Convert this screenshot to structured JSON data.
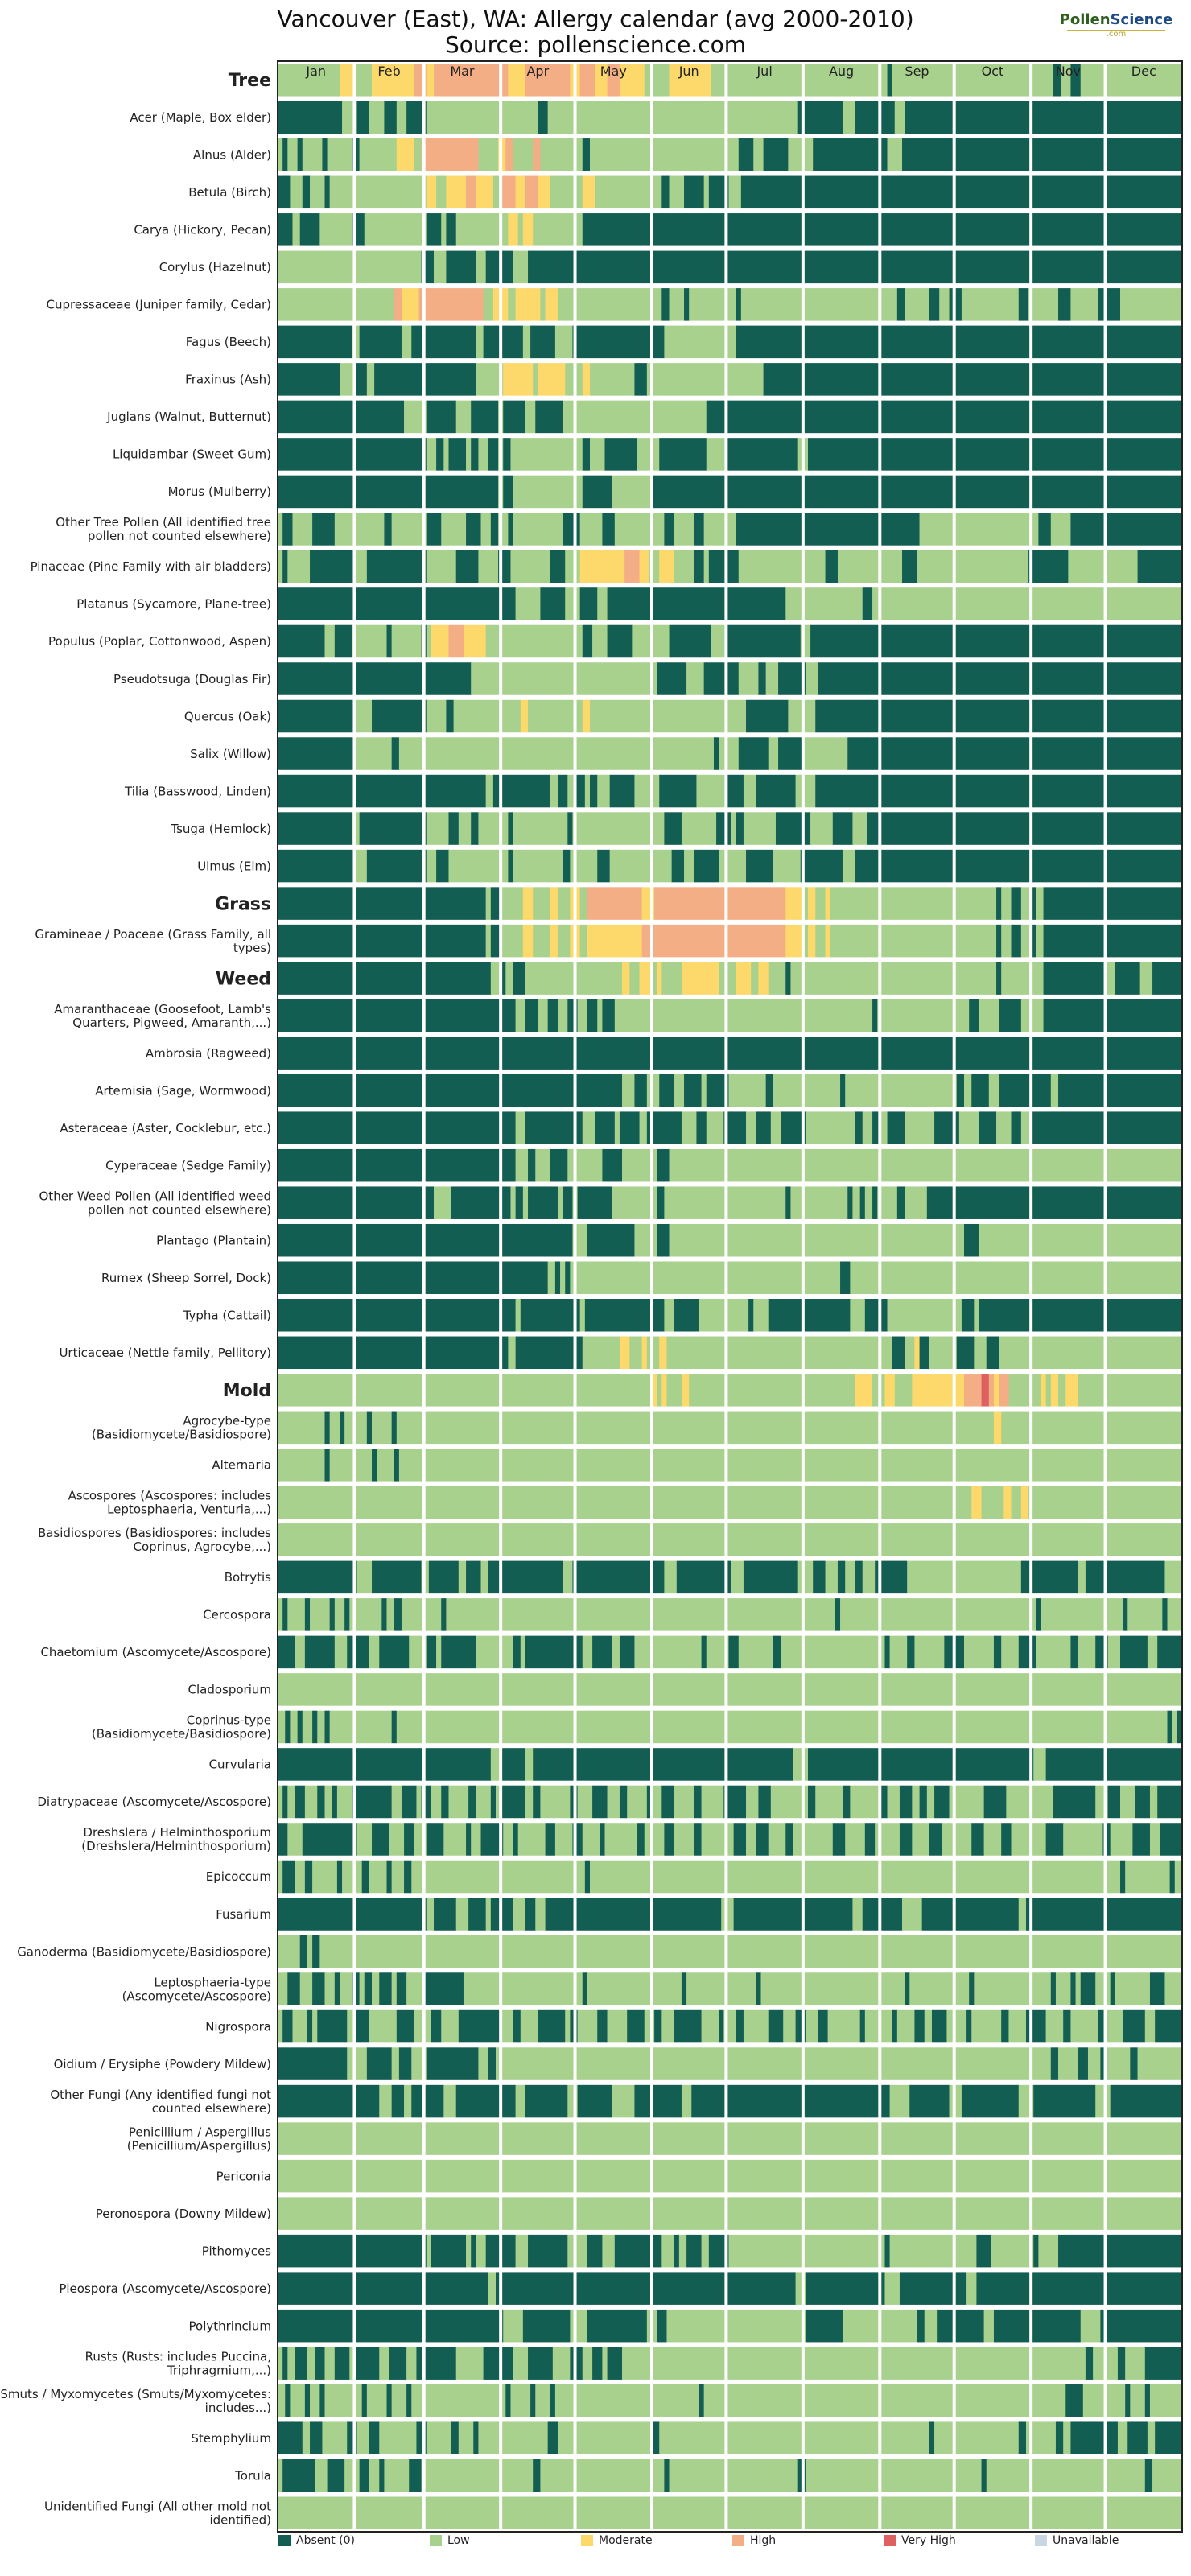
{
  "page": {
    "title_line1": "Vancouver (East), WA: Allergy calendar (avg 2000-2010)",
    "title_line2": "Source: pollenscience.com",
    "logo_word1": "Pollen",
    "logo_word2": "Science",
    "logo_sub": ".com"
  },
  "colors": {
    "absent": "#135e52",
    "low": "#a9d18e",
    "moderate": "#fcd96a",
    "high": "#f4ae86",
    "very_high": "#de6060",
    "unavailable": "#c8d8e2",
    "grid": "#ffffff",
    "frame": "#222222"
  },
  "chart_data": {
    "type": "heatmap",
    "title": "Vancouver (East), WA: Allergy calendar (avg 2000-2010)",
    "subtitle": "Source: pollenscience.com",
    "x_ticks": [
      "Jan",
      "Feb",
      "Mar",
      "Apr",
      "May",
      "Jun",
      "Jul",
      "Aug",
      "Sep",
      "Oct",
      "Nov",
      "Dec"
    ],
    "x_range_days": [
      1,
      365
    ],
    "legend": [
      {
        "key": "absent",
        "label": "Absent (0)"
      },
      {
        "key": "low",
        "label": "Low"
      },
      {
        "key": "moderate",
        "label": "Moderate"
      },
      {
        "key": "high",
        "label": "High"
      },
      {
        "key": "very_high",
        "label": "Very High"
      },
      {
        "key": "unavailable",
        "label": "Unavailable"
      }
    ],
    "level_codes": {
      "0": "absent",
      "1": "low",
      "2": "moderate",
      "3": "high",
      "4": "very_high",
      "5": "unavailable"
    },
    "segment_format": "each string lists period levels; periods are roughly 3-7 days; a segment is level:startDay-endDay",
    "rows": [
      {
        "label": "Tree",
        "header": true,
        "segments": "1:1-25,2:26-31,1:32-38,2:39-55,3:56-60,2:61-63,3:64-85,3:86-93,2:94-100,3:101-118,2:119-122,3:123-128,2:129-133,3:134-138,2:139-148,1:149-158,2:159-175,1:176-246,0:247-248,1:249-313,0:314-316,1:317-320,0:321-324,1:325-365"
      },
      {
        "label": "Acer (Maple, Box elder)",
        "segments": "0:1-26,1:27-32,0:33-37,1:38-43,0:44-48,1:49-52,0:53-60,1:61-105,0:106-109,1:110-210,0:211-228,1:229-233,0:234-249,1:250-253,0:254-365"
      },
      {
        "label": "Alnus (Alder)",
        "segments": "1:1-2,0:3-4,1:5-8,0:9-10,1:11-18,0:19-20,1:21-30,0:31-33,1:34-48,2:49-55,1:56-58,3:59-81,1:82-89,2:90-92,3:93-95,1:96-103,3:104-106,1:107-123,0:124-126,1:127-186,0:187-192,1:193-196,0:197-206,1:207-216,0:217-246,1:247-252,0:253-365"
      },
      {
        "label": "Betula (Birch)",
        "segments": "0:1-5,1:6-10,0:11-13,1:14-19,0:20-21,1:22-60,2:61-64,1:65-68,2:69-76,3:77-80,2:81-87,1:88-90,3:91-96,2:97-100,3:101-105,2:106-110,1:111-123,2:124-128,1:129-155,0:156-158,1:159-164,0:165-172,1:173-174,0:175-182,1:183-187,0:188-365"
      },
      {
        "label": "Carya (Hickory, Pecan)",
        "segments": "0:1-6,1:7-9,0:10-17,1:18-30,0:31-35,1:36-60,0:61-66,1:67-68,0:69-72,1:73-93,2:94-97,1:98-99,2:100-103,1:104-123,0:124-365"
      },
      {
        "label": "Corylus (Hazelnut)",
        "segments": "1:1-58,0:59-63,1:64-68,0:69-80,1:81-84,0:85-95,1:96-101,0:102-365"
      },
      {
        "label": "Cupressaceae (Juniper family, Cedar)",
        "segments": "1:1-47,3:48-50,2:51-57,3:58-83,1:84-87,2:88-93,1:94-96,2:97-106,1:107-108,2:109-113,1:114-155,0:156-158,1:159-164,0:165-166,1:167-185,0:186-187,1:188-250,0:251-253,1:254-263,0:264-267,1:268-271,0:272-276,1:277-299,0:300-303,1:304-315,0:316-320,1:321-331,0:332-340,1:341-365"
      },
      {
        "label": "Fagus (Beech)",
        "segments": "0:1-30,1:31-33,0:34-50,1:51-54,0:55-80,1:81-83,0:84-99,1:100-102,0:103-112,1:113-119,0:120-156,1:157-185,0:186-365"
      },
      {
        "label": "Fraxinus (Ash)",
        "segments": "0:1-25,1:26-31,0:32-36,1:37-39,0:40-80,1:81-91,2:92-103,1:104-105,2:106-116,1:117-123,2:124-126,1:127-144,0:145-149,1:150-196,0:197-365"
      },
      {
        "label": "Juglans (Walnut, Butternut)",
        "segments": "0:1-51,1:52-60,0:61-72,1:73-78,0:79-89,1:90-91,0:92-100,1:101-104,0:105-115,1:116-173,0:174-365"
      },
      {
        "label": "Liquidambar (Sweet Gum)",
        "segments": "0:1-60,1:61-64,0:65-67,1:68-69,0:70-76,1:77-78,0:79-81,1:82-85,0:86-89,1:90-91,0:92-94,1:95-123,0:124-126,1:127-132,0:133-145,1:146-154,0:155-173,1:174-181,0:182-210,1:211-214,0:215-365"
      },
      {
        "label": "Morus (Mulberry)",
        "segments": "0:1-89,1:90-91,0:92-95,1:96-123,0:124-135,1:136-151,0:152-365"
      },
      {
        "label": "Other Tree Pollen (All identified tree pollen not counted elsewhere)",
        "segments": "1:1-2,0:3-6,1:7-14,0:15-23,1:24-43,0:44-46,1:47-60,0:61-66,1:67-76,0:77-82,1:83-86,0:87-89,1:90-93,0:94-95,1:96-115,0:116-122,1:123-131,0:132-136,1:137-156,0:157-160,1:161-168,0:169-172,1:173-185,0:186-259,1:260-307,0:308-312,1:313-320,0:321-365"
      },
      {
        "label": "Pinaceae (Pine Family with air bladders)",
        "segments": "1:1-2,0:3-4,1:5-13,0:14-31,1:32-36,0:37-60,1:61-72,0:73-81,1:82-89,0:90-94,1:95-110,0:111-116,1:117-122,2:123-140,3:141-146,2:147-150,1:151-154,2:155-160,1:161-168,0:169-172,1:173-174,0:175-186,1:187-221,0:222-226,1:227-252,0:253-258,1:259-303,0:304-319,1:320-347,0:348-365"
      },
      {
        "label": "Platanus (Sycamore, Plane-tree)",
        "segments": "0:1-96,1:97-106,0:107-116,1:117-122,0:123-129,1:130-133,0:134-205,1:206-236,0:237-240,1:241-365"
      },
      {
        "label": "Populus (Poplar, Cottonwood, Aspen)",
        "segments": "0:1-19,1:20-23,0:24-30,1:31-44,0:45-46,1:47-58,0:59-60,1:61-62,2:63-69,3:70-75,2:76-84,1:85-123,0:124-127,1:128-133,0:134-143,1:144-158,0:159-175,1:176-181,0:182-211,1:212-215,0:216-365"
      },
      {
        "label": "Pseudotsuga (Douglas Fir)",
        "segments": "0:1-78,1:79-153,0:154-165,1:166-172,0:173-186,1:187-194,0:195-197,1:198-202,0:203-213,1:214-218,0:219-365"
      },
      {
        "label": "Quercus (Oak)",
        "segments": "0:1-31,1:32-38,0:39-60,1:61-68,0:69-71,1:72-98,2:99-101,1:102-123,2:124-126,1:127-189,0:190-206,1:207-217,0:218-365"
      },
      {
        "label": "Salix (Willow)",
        "segments": "0:1-31,1:32-46,0:47-49,1:50-176,0:177-178,1:179-186,0:187-198,1:199-202,0:203-212,1:213-230,0:231-365"
      },
      {
        "label": "Tilia (Basswood, Linden)",
        "segments": "0:1-84,1:85-87,0:88-110,1:111-113,0:114-117,1:118-120,0:121-124,1:125-126,0:127-129,1:130-134,0:135-144,1:145-154,0:155-169,1:170-181,0:182-188,1:189-193,0:194-209,1:210-217,0:218-365"
      },
      {
        "label": "Tsuga (Hemlock)",
        "segments": "0:1-30,1:31-33,0:34-60,1:61-69,0:70-73,1:74-78,0:79-81,1:82-93,0:94-95,1:96-117,0:118-119,1:120-156,0:157-163,1:164-177,0:178-183,1:184-185,0:186-188,1:189-201,0:202-215,1:216-224,0:225-232,1:233-238,0:239-365"
      },
      {
        "label": "Ulmus (Elm)",
        "segments": "0:1-31,1:32-36,0:37-60,1:61-64,0:65-69,1:70-93,0:94-95,1:96-115,0:116-118,1:119-129,0:130-134,1:135-159,0:160-164,1:165-168,0:169-178,1:179-189,0:190-200,1:201-211,0:212-228,1:229-233,0:234-365"
      },
      {
        "label": "Grass",
        "header": true,
        "segments": "0:1-84,1:85-86,0:87-90,1:91-99,2:100-103,1:104-110,2:111-113,1:114-118,2:119-122,1:123-125,3:126-147,2:148-152,3:153-205,2:206-212,1:213-214,2:215-217,1:218-221,2:222-223,1:224-290,0:291-292,1:293-296,0:297-300,1:301-304,0:305-306,1:307-309,0:310-365"
      },
      {
        "label": "Gramineae / Poaceae (Grass Family, all types)",
        "segments": "0:1-84,1:85-86,0:87-90,1:91-99,2:100-103,1:104-110,2:111-113,1:114-118,2:119-122,1:123-125,2:126-147,3:148-205,2:206-212,1:213-214,2:215-217,1:218-221,2:222-223,1:224-290,0:291-292,1:293-296,0:297-300,1:301-304,0:305-306,1:307-309,0:310-365"
      },
      {
        "label": "Weed",
        "header": true,
        "segments": "0:1-86,1:87-90,0:91-92,1:93-95,0:96-100,1:101-139,2:140-142,1:143-146,2:147-151,1:152-153,2:154-155,1:156-163,2:164-178,1:179-185,2:186-191,1:192-194,2:195-198,1:199-205,0:206-207,1:208-290,0:291-292,1:293-309,0:310-334,1:335-338,0:339-348,1:349-353,0:354-365"
      },
      {
        "label": "Amaranthaceae (Goosefoot, Lamb's Quarters, Pigweed, Amaranth,...)",
        "segments": "0:1-96,1:97-100,0:101-105,1:106-109,0:110-113,1:114-117,0:118-121,1:122-125,0:126-129,1:130-131,0:132-136,1:137-240,0:241-242,1:243-279,0:280-283,1:284-291,0:292-300,1:301-309,0:310-365"
      },
      {
        "label": "Ambrosia (Ragweed)",
        "segments": "0:1-365"
      },
      {
        "label": "Artemisia (Sage, Wormwood)",
        "segments": "0:1-139,1:140-144,0:145-149,1:150-154,0:155-160,1:161-164,0:165-171,1:172-173,0:174-182,1:183-197,0:198-200,1:201-227,0:228-229,1:230-274,0:275-277,1:278-280,0:281-287,1:288-291,0:292-312,1:313-315,0:316-365"
      },
      {
        "label": "Asteraceae (Aster, Cocklebur, etc.)",
        "segments": "0:1-96,1:97-100,0:101-123,1:124-128,0:129-136,1:137-138,0:139-146,1:147-149,0:150-163,1:164-169,0:170-173,1:174-180,0:181-189,1:190-193,0:194-199,1:200-203,0:204-213,1:214-233,0:234-236,1:237-240,0:241-243,1:244-246,0:247-253,1:254-265,0:266-275,1:276-283,0:284-290,1:291-296,0:297-300,1:301-304,0:305-365"
      },
      {
        "label": "Cyperaceae (Sedge Family)",
        "segments": "0:1-96,1:97-101,0:102-104,1:105-110,0:111-117,1:118-131,0:132-139,1:140-153,0:154-158,1:159-365"
      },
      {
        "label": "Other Weed Pollen (All identified weed pollen not counted elsewhere)",
        "segments": "0:1-63,1:64-70,0:71-94,1:95-96,0:97-99,1:100-101,0:102-113,1:114-115,0:116-119,1:120-121,0:122-135,1:136-153,0:154-156,1:157-205,0:206-207,1:208-230,0:231-232,1:233-235,0:236-237,1:238-240,0:241-242,1:243-250,0:251-253,1:254-262,0:263-365"
      },
      {
        "label": "Plantago (Plantain)",
        "segments": "0:1-119,1:120-125,0:126-144,1:145-153,0:154-158,1:159-277,0:278-283,1:284-365"
      },
      {
        "label": "Rumex (Sheep Sorrel, Dock)",
        "segments": "0:1-109,1:110-112,0:113-114,1:115-116,0:117-118,1:119-227,0:228-231,1:232-365"
      },
      {
        "label": "Typha (Cattail)",
        "segments": "0:1-96,1:97-98,0:99-122,1:123-124,0:125-156,1:157-160,0:161-170,1:171-190,0:191-192,1:193-198,0:199-231,1:232-237,0:238-246,1:247-276,0:277-281,1:282-283,0:284-365"
      },
      {
        "label": "Urticaceae (Nettle family, Pellitory)",
        "segments": "0:1-93,1:94-96,0:97-123,1:124-138,2:139-142,1:143-147,2:148-149,1:150-154,2:155-157,1:158-248,0:249-253,1:254-257,2:258-259,0:260-263,1:264-274,0:275-281,1:282-286,0:287-291,1:292-365"
      },
      {
        "label": "Mold",
        "header": true,
        "segments": "1:1-151,2:152-153,1:154-155,2:156-157,1:158-163,2:164-166,1:167-233,2:234-240,1:241-245,2:246-249,1:250-256,2:257-277,3:278-284,4:285-287,3:288-289,2:290-291,3:292-295,1:296-308,2:309-310,1:311-312,2:313-315,1:316-318,2:319-323,1:324-365"
      },
      {
        "label": "Agrocybe-type (Basidiomycete/Basidiospore)",
        "segments": "1:1-19,0:20-21,1:22-25,0:26-27,1:28-36,0:37-38,1:39-46,0:47-48,1:49-289,2:290-292,1:293-365"
      },
      {
        "label": "Alternaria",
        "segments": "1:1-19,0:20-21,1:22-38,0:39-40,1:41-47,0:48-49,1:50-365"
      },
      {
        "label": "Ascospores (Ascospores: includes Leptosphaeria, Venturia,...)",
        "segments": "1:1-280,2:281-284,1:285-293,2:294-296,1:297-300,2:301-303,1:304-365"
      },
      {
        "label": "Basidiospores (Basidiospores: includes Coprinus, Agrocybe,...)",
        "segments": "1:1-365"
      },
      {
        "label": "Botrytis",
        "segments": "0:1-32,1:33-38,0:39-58,1:59-61,0:62-73,1:74-76,0:77-82,1:83-85,0:86-115,1:116-119,0:120-156,1:157-161,0:162-183,1:184-188,0:189-210,1:211-216,0:217-221,1:222-226,0:227-229,1:230-233,0:234-236,1:237-241,0:242-254,1:255-300,0:301-323,1:324-326,0:327-358,1:359-365"
      },
      {
        "label": "Cercospora",
        "segments": "1:1-2,0:3-4,1:5-11,0:12-13,1:14-21,0:22-23,1:24-27,0:28-29,1:30-42,0:43-44,1:45-47,0:48-50,1:51-66,0:67-68,1:69-225,0:226-227,1:228-306,0:307-308,1:309-341,0:342-343,1:344-357,0:358-359,1:360-365"
      },
      {
        "label": "Chaetomium (Ascomycete/Ascospore)",
        "segments": "0:1-7,1:8-11,0:12-23,1:24-28,0:29-37,1:38-41,0:42-53,1:54-60,0:61-64,1:65-66,0:67-80,1:81-95,0:96-98,1:99-100,0:101-123,1:124-127,0:128-135,1:136-138,0:139-144,1:145-171,0:172-173,1:174-182,0:183-186,1:187-200,0:201-203,1:204-245,0:246-247,1:248-254,0:255-257,1:258-269,0:270-277,1:278-289,0:290-292,1:293-299,0:300-306,1:307-320,0:321-323,1:324-330,0:331-335,1:336-340,0:341-351,1:352-355,0:356-365"
      },
      {
        "label": "Cladosporium",
        "segments": "1:1-365"
      },
      {
        "label": "Coprinus-type (Basidiomycete/Basidiospore)",
        "segments": "1:1-3,0:4-5,1:6-8,0:9-10,1:11-14,0:15-16,1:17-19,0:20-21,1:22-46,0:47-48,1:49-359,0:360-361,1:362-363,0:364-365"
      },
      {
        "label": "Curvularia",
        "segments": "0:1-86,1:87-90,0:91-100,1:101-103,0:104-208,1:209-214,0:215-305,1:306-310,0:311-365"
      },
      {
        "label": "Diatrypaceae (Ascomycete/Ascospore)",
        "segments": "1:1-2,0:3-4,1:5-7,0:8-11,1:12-16,0:17-19,1:20-22,0:23-24,1:25-30,0:31-46,1:47-50,0:51-56,1:57-58,0:59-62,1:63-66,0:67-69,1:70-77,0:78-80,1:81-86,0:87-88,1:89-90,0:91-100,1:101-103,0:104-106,1:107-118,0:119-121,1:122-127,0:128-133,1:134-138,0:139-141,1:142-149,0:150-151,1:152-155,0:156-160,1:161-168,0:169-171,1:172-180,0:181-189,1:190-194,0:195-199,1:200-214,0:215-217,1:218-228,0:229-231,1:232-243,0:244-246,1:247-251,0:252-256,1:257-259,0:260-262,1:263-265,0:266-271,1:272-285,0:286-294,1:295-313,0:314-330,1:331-335,0:336-340,1:341-346,0:347-352,1:353-355,0:356-365"
      },
      {
        "label": "Dreshslera / Helminthosporium (Dreshslera/Helminthosporium)",
        "segments": "0:1-4,1:5-10,0:11-32,1:33-38,0:39-45,1:46-51,0:52-55,1:56-60,0:61-67,1:68-76,0:77-78,1:79-82,0:83-91,1:92-95,0:96-97,1:98-108,0:109-112,1:113-119,0:120-123,1:124-130,0:131-132,1:133-145,0:146-148,1:149-156,0:157-160,1:161-168,0:169-171,1:172-184,0:185-189,1:190-193,0:194-198,1:199-205,0:206-208,1:209-224,0:225-229,1:230-237,0:238-241,1:242-251,0:252-256,1:257-263,0:264-268,1:269-280,0:281-285,1:286-292,0:293-296,1:297-310,0:311-317,1:318-333,0:334-336,1:337-345,0:346-352,1:353-356,0:357-365"
      },
      {
        "label": "Epicoccum",
        "segments": "1:1-2,0:3-7,1:8-11,0:12-14,1:15-24,0:25-26,1:27-34,0:35-37,1:38-44,0:45-46,1:47-51,0:52-54,1:55-124,0:125-126,1:127-340,0:341-342,1:343-360,0:361-362,1:363-365"
      },
      {
        "label": "Fusarium",
        "segments": "0:1-60,1:61-63,0:64-72,1:73-77,0:78-84,1:85-86,0:87-95,1:96-100,0:101-104,1:105-108,0:109-179,1:180-184,0:185-232,1:233-236,0:237-252,1:253-260,0:261-299,1:300-302,0:303-365"
      },
      {
        "label": "Ganoderma (Basidiomycete/Basidiospore)",
        "segments": "1:1-9,0:10-12,1:13-14,0:15-17,1:18-365"
      },
      {
        "label": "Leptosphaeria-type (Ascomycete/Ascospore)",
        "segments": "1:1-4,0:5-9,1:10-14,0:15-19,1:20-23,0:24-25,1:26-30,0:31-33,1:34-35,0:36-38,1:39-41,0:42-46,1:47-48,0:49-52,1:53-59,0:60-75,1:76-123,0:124-125,1:126-163,0:164-165,1:166-193,0:194-195,1:196-253,0:254-255,1:256-279,0:280-281,1:282-312,0:313-314,1:315-320,0:321-322,1:323-324,0:325-330,1:331-336,0:337-338,1:339-352,0:353-358,1:359-365"
      },
      {
        "label": "Nigrospora",
        "segments": "1:1-2,0:3-6,1:7-12,0:13-14,1:15-16,0:17-28,1:29-31,0:32-37,1:38-48,0:49-55,1:56-62,0:63-66,1:67-73,0:74-90,1:91-95,0:96-98,1:99-105,0:106-116,1:117-118,0:119-121,1:122-129,0:130-133,1:134-141,0:142-148,1:149-152,0:153-155,1:156-160,0:161-171,1:172-178,0:179-180,1:181-185,0:186-188,1:189-198,0:199-204,1:205-209,0:210-213,1:214-218,0:219-222,1:223-235,0:236-237,1:238-248,0:249-250,1:251-257,0:258-261,1:262-264,0:265-270,1:271-278,0:279-280,1:281-292,0:293-295,1:296-302,0:303-310,1:311-317,0:318-320,1:321-331,0:332-334,1:335-341,0:342-350,1:351-354,0:355-365"
      },
      {
        "label": "Oidium / Erysiphe (Powdery Mildew)",
        "segments": "0:1-28,1:29-36,0:37-46,1:47-49,0:50-54,1:55-60,0:61-81,1:82-85,0:86-88,1:89-312,0:313-315,1:316-323,0:324-327,1:328-332,0:333-334,1:335-344,0:345-347,1:348-365"
      },
      {
        "label": "Other Fungi (Any identified fungi not counted elsewhere)",
        "segments": "0:1-41,1:42-46,0:47-51,1:52-54,0:55-67,1:68-72,0:73-96,1:97-100,0:101-117,1:118-121,0:122-135,1:136-144,0:145-163,1:164-167,0:168-247,1:248-255,0:256-271,1:272-276,0:277-299,1:300-305,0:306-330,1:331-336,0:337-365"
      },
      {
        "label": "Penicillium / Aspergillus (Penicillium/Aspergillus)",
        "segments": "1:1-365"
      },
      {
        "label": "Periconia",
        "segments": "1:1-365"
      },
      {
        "label": "Peronospora (Downy Mildew)",
        "segments": "1:1-365"
      },
      {
        "label": "Pithomyces",
        "segments": "0:1-60,1:61-62,0:63-76,1:77-78,0:79-80,1:81-84,0:85-96,1:97-101,0:102-117,1:118-125,0:126-131,1:132-136,0:137-155,1:156-160,0:161-162,1:163-165,0:166-171,1:172-174,0:175-182,1:183-245,0:246-247,1:248-282,0:283-288,1:289-305,0:306-307,1:308-315,0:316-365"
      },
      {
        "label": "Pleospora (Ascomycete/Ascospore)",
        "segments": "0:1-85,1:86-88,0:89-209,1:210-213,0:214-245,1:246-251,0:252-278,1:279-282,0:283-365"
      },
      {
        "label": "Polythrincium",
        "segments": "0:1-91,1:92-99,0:100-118,1:119-125,0:126-149,1:150-153,0:154-157,1:158-213,0:214-228,1:229-258,0:259-261,1:262-266,0:267-285,1:286-289,0:290-324,1:325-332,0:333-365"
      },
      {
        "label": "Rusts (Rusts: includes Puccina, Triphragmium,...)",
        "segments": "1:1-2,0:3-4,1:5-7,0:8-12,1:13-15,0:16-19,1:20-23,0:24-29,1:30-31,0:32-41,1:42-45,0:46-52,1:53-56,0:57-72,1:73-83,0:84-95,1:96-101,0:102-111,1:112-118,0:119-123,1:124-127,0:128-131,1:132-133,0:134-139,1:140-326,0:327-329,1:330-339,0:340-342,1:343-350,0:351-365"
      },
      {
        "label": "Smuts / Myxomycetes (Smuts/Myxomycetes: includes...)",
        "segments": "1:1-3,0:4-5,1:6-11,0:12-13,1:14-17,0:18-19,1:20-34,0:35-36,1:37-44,0:45-46,1:47-52,0:53-54,1:55-92,0:93-94,1:95-102,0:103-104,1:105-110,0:111-112,1:113-170,0:171-172,1:173-318,0:319-325,1:326-342,0:343-344,1:345-350,0:351-352,1:353-365"
      },
      {
        "label": "Stemphylium",
        "segments": "0:1-10,1:11-13,0:14-18,1:19-28,0:29-32,1:33-37,0:38-41,1:42-56,0:57-60,1:61-70,0:71-73,1:74-79,0:80-81,1:82-109,0:110-113,1:114-151,0:152-154,1:155-263,0:264-265,1:266-299,0:300-302,1:303-314,0:315-317,1:318-320,0:321-339,1:340-343,0:344-351,1:352-354,0:355-365"
      },
      {
        "label": "Torula",
        "segments": "1:1-2,0:3-15,1:16-20,0:21-27,1:28-33,0:34-37,1:38-41,0:42-43,1:44-53,0:54-58,1:59-103,0:104-106,1:107-156,0:157-158,1:159-210,0:211-213,1:214-284,0:285-286,1:287-350,0:351-353,1:354-365"
      },
      {
        "label": "Unidentified Fungi (All other mold not identified)",
        "segments": "1:1-365"
      }
    ]
  }
}
